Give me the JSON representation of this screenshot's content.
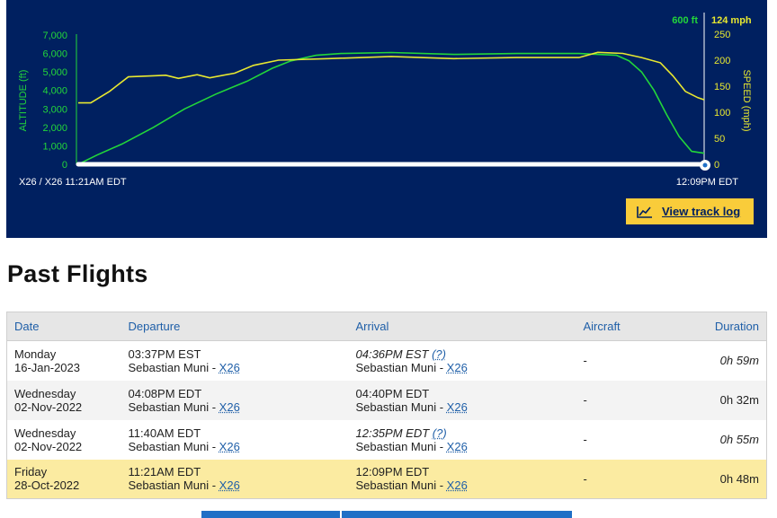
{
  "track": {
    "altitude_max_label": "600 ft",
    "speed_max_label": "124 mph",
    "altitude_axis_title": "ALTITUDE (ft)",
    "speed_axis_title": "SPEED (mph)",
    "altitude_ticks": [
      "7,000",
      "6,000",
      "5,000",
      "4,000",
      "3,000",
      "2,000",
      "1,000",
      "0"
    ],
    "speed_ticks": [
      "250",
      "200",
      "150",
      "100",
      "50",
      "0"
    ],
    "start_label": "X26 / X26 11:21AM EDT",
    "end_label": "12:09PM EDT",
    "view_track_log_label": "View track log",
    "colors": {
      "background": "#002060",
      "altitude": "#22d63a",
      "speed": "#e8e830",
      "axis_text": "#ffffff",
      "button": "#f9cc3a"
    }
  },
  "chart_data": {
    "type": "line",
    "x_range": [
      "11:21AM EDT",
      "12:09PM EDT"
    ],
    "series": [
      {
        "axis": "left",
        "ylim": [
          0,
          7000
        ],
        "points": [
          [
            0,
            0
          ],
          [
            0.03,
            500
          ],
          [
            0.07,
            1100
          ],
          [
            0.12,
            2000
          ],
          [
            0.17,
            3000
          ],
          [
            0.22,
            3800
          ],
          [
            0.27,
            4500
          ],
          [
            0.31,
            5200
          ],
          [
            0.34,
            5600
          ],
          [
            0.38,
            5900
          ],
          [
            0.42,
            6000
          ],
          [
            0.5,
            6050
          ],
          [
            0.6,
            5950
          ],
          [
            0.7,
            6000
          ],
          [
            0.8,
            6000
          ],
          [
            0.86,
            5900
          ],
          [
            0.88,
            5600
          ],
          [
            0.9,
            5000
          ],
          [
            0.92,
            4000
          ],
          [
            0.94,
            2700
          ],
          [
            0.96,
            1500
          ],
          [
            0.98,
            700
          ],
          [
            1,
            600
          ]
        ]
      },
      {
        "axis": "right",
        "ylim": [
          0,
          250
        ],
        "points": [
          [
            0,
            118
          ],
          [
            0.02,
            118
          ],
          [
            0.05,
            140
          ],
          [
            0.08,
            168
          ],
          [
            0.12,
            170
          ],
          [
            0.14,
            171
          ],
          [
            0.16,
            165
          ],
          [
            0.19,
            172
          ],
          [
            0.21,
            166
          ],
          [
            0.25,
            175
          ],
          [
            0.28,
            190
          ],
          [
            0.32,
            200
          ],
          [
            0.4,
            203
          ],
          [
            0.5,
            207
          ],
          [
            0.6,
            203
          ],
          [
            0.7,
            205
          ],
          [
            0.8,
            205
          ],
          [
            0.83,
            215
          ],
          [
            0.87,
            213
          ],
          [
            0.9,
            205
          ],
          [
            0.93,
            195
          ],
          [
            0.95,
            170
          ],
          [
            0.97,
            140
          ],
          [
            0.99,
            128
          ],
          [
            1,
            124
          ]
        ]
      }
    ]
  },
  "section_title": "Past Flights",
  "table": {
    "headers": {
      "date": "Date",
      "departure": "Departure",
      "arrival": "Arrival",
      "aircraft": "Aircraft",
      "duration": "Duration"
    },
    "rows": [
      {
        "day": "Monday",
        "date": "16-Jan-2023",
        "dep_time": "03:37PM EST",
        "dep_airport": "Sebastian Muni - ",
        "dep_code": "X26",
        "arr_time": "04:36PM EST",
        "arr_q": "(?)",
        "arr_airport": "Sebastian Muni - ",
        "arr_code": "X26",
        "aircraft": "-",
        "duration": "0h 59m"
      },
      {
        "day": "Wednesday",
        "date": "02-Nov-2022",
        "dep_time": "04:08PM EDT",
        "dep_airport": "Sebastian Muni - ",
        "dep_code": "X26",
        "arr_time": "04:40PM EDT",
        "arr_q": "",
        "arr_airport": "Sebastian Muni - ",
        "arr_code": "X26",
        "aircraft": "-",
        "duration": "0h 32m"
      },
      {
        "day": "Wednesday",
        "date": "02-Nov-2022",
        "dep_time": "11:40AM EDT",
        "dep_airport": "Sebastian Muni - ",
        "dep_code": "X26",
        "arr_time": "12:35PM EDT",
        "arr_q": "(?)",
        "arr_airport": "Sebastian Muni - ",
        "arr_code": "X26",
        "aircraft": "-",
        "duration": "0h 55m"
      },
      {
        "day": "Friday",
        "date": "28-Oct-2022",
        "dep_time": "11:21AM EDT",
        "dep_airport": "Sebastian Muni - ",
        "dep_code": "X26",
        "arr_time": "12:09PM EDT",
        "arr_q": "",
        "arr_airport": "Sebastian Muni - ",
        "arr_code": "X26",
        "aircraft": "-",
        "duration": "0h 48m"
      }
    ]
  }
}
